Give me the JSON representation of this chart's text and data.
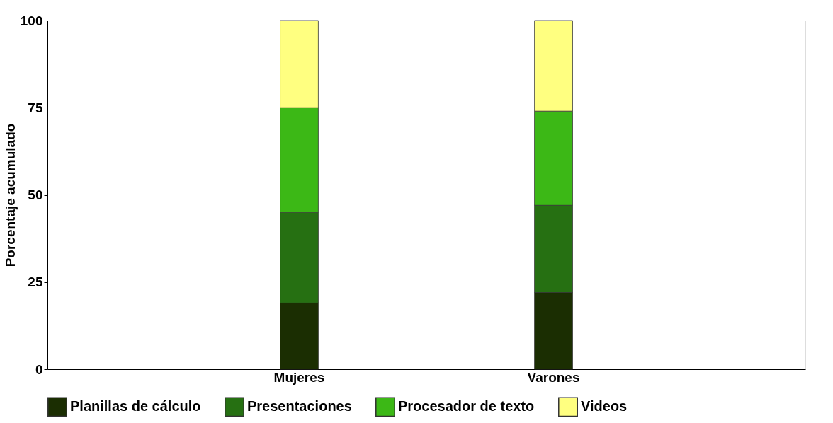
{
  "chart_data": {
    "type": "bar",
    "stacked": true,
    "ylabel": "Porcentaje acumulado",
    "categories": [
      "Mujeres",
      "Varones"
    ],
    "series": [
      {
        "name": "Planillas de cálculo",
        "color": "#1b2e02",
        "values": [
          19,
          22
        ]
      },
      {
        "name": "Presentaciones",
        "color": "#267012",
        "values": [
          26,
          25
        ]
      },
      {
        "name": "Procesador de texto",
        "color": "#3cb816",
        "values": [
          30,
          27
        ]
      },
      {
        "name": "Videos",
        "color": "#ffff80",
        "values": [
          25,
          26
        ]
      }
    ],
    "ylim": [
      0,
      100
    ],
    "yticks": [
      0,
      25,
      50,
      75,
      100
    ],
    "grid": false,
    "legend": "bottom"
  }
}
